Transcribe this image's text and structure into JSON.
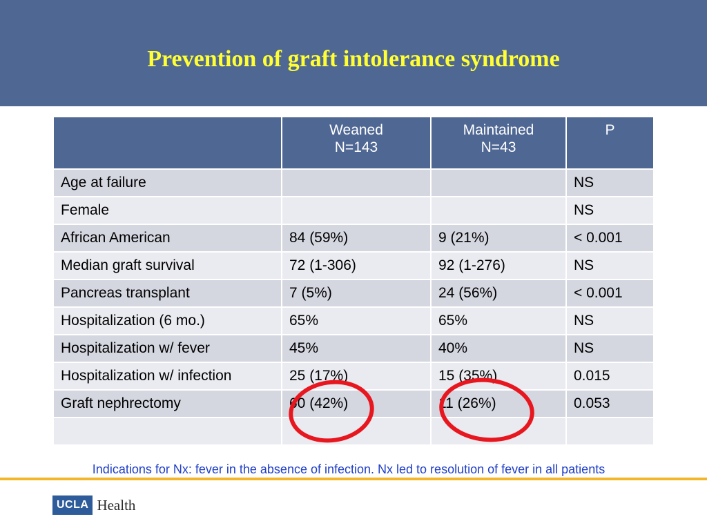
{
  "slide": {
    "title": "Prevention of graft intolerance syndrome"
  },
  "table": {
    "columns": [
      {
        "line1": "",
        "line2": ""
      },
      {
        "line1": "Weaned",
        "line2": "N=143"
      },
      {
        "line1": "Maintained",
        "line2": "N=43"
      },
      {
        "line1": "P",
        "line2": ""
      }
    ],
    "rows": [
      [
        "Age at failure",
        "",
        "",
        "NS"
      ],
      [
        "Female",
        "",
        "",
        "NS"
      ],
      [
        "African American",
        "84 (59%)",
        "9 (21%)",
        "< 0.001"
      ],
      [
        "Median graft survival",
        "72 (1-306)",
        "92 (1-276)",
        "NS"
      ],
      [
        "Pancreas transplant",
        "7 (5%)",
        "24 (56%)",
        "< 0.001"
      ],
      [
        "Hospitalization (6 mo.)",
        "65%",
        "65%",
        "NS"
      ],
      [
        "Hospitalization w/ fever",
        "45%",
        "40%",
        "NS"
      ],
      [
        "Hospitalization w/ infection",
        "25 (17%)",
        "15 (35%)",
        "0.015"
      ],
      [
        "Graft nephrectomy",
        "60 (42%)",
        "11 (26%)",
        "0.053"
      ],
      [
        "",
        "",
        "",
        ""
      ]
    ]
  },
  "annotations": {
    "highlight_color": "#e8171f"
  },
  "footer": {
    "note": "Indications for Nx: fever in the absence of infection. Nx led to resolution of fever in all patients",
    "logo_box_text": "UCLA",
    "logo_text": "Health",
    "rule_color": "#f3b62a"
  }
}
